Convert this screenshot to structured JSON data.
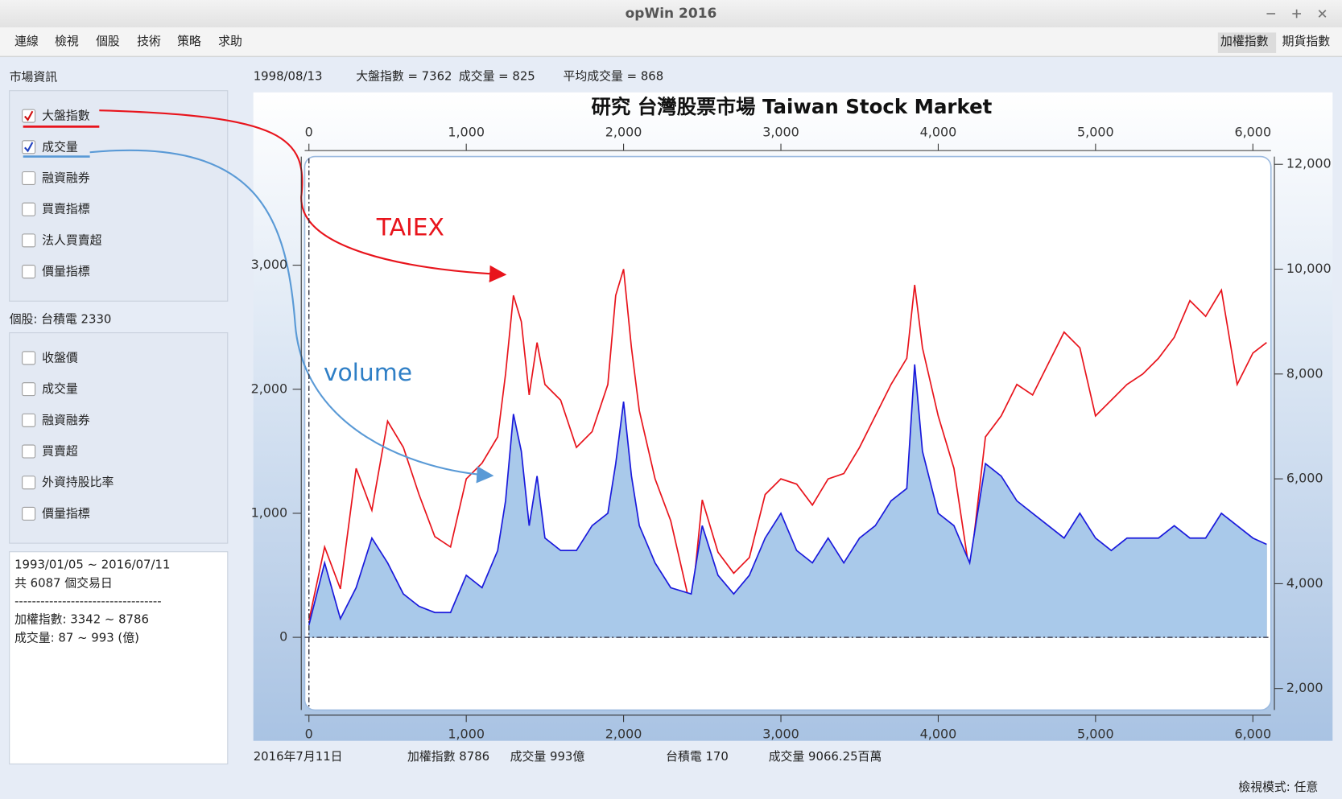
{
  "window": {
    "title": "opWin 2016"
  },
  "menu": [
    "連線",
    "檢視",
    "個股",
    "技術",
    "策略",
    "求助"
  ],
  "toolbar": [
    "加權指數",
    "期貨指數"
  ],
  "sidebar": {
    "market_title": "市場資訊",
    "market_items": [
      {
        "label": "大盤指數",
        "checked": true
      },
      {
        "label": "成交量",
        "checked": true
      },
      {
        "label": "融資融券",
        "checked": false
      },
      {
        "label": "買賣指標",
        "checked": false
      },
      {
        "label": "法人買賣超",
        "checked": false
      },
      {
        "label": "價量指標",
        "checked": false
      }
    ],
    "stock_title": "個股: 台積電  2330",
    "stock_items": [
      {
        "label": "收盤價",
        "checked": false
      },
      {
        "label": "成交量",
        "checked": false
      },
      {
        "label": "融資融券",
        "checked": false
      },
      {
        "label": "買賣超",
        "checked": false
      },
      {
        "label": "外資持股比率",
        "checked": false
      },
      {
        "label": "價量指標",
        "checked": false
      }
    ],
    "info_lines": [
      "1993/01/05 ~ 2016/07/11",
      "共 6087 個交易日",
      "----------------------------------",
      "加權指數: 3342 ~ 8786",
      "成交量: 87 ~ 993 (億)"
    ]
  },
  "status_top": [
    "1998/08/13",
    "大盤指數 = 7362",
    "成交量 = 825",
    "平均成交量 = 868"
  ],
  "status_bottom": [
    "2016年7月11日",
    "加權指數 8786",
    "成交量 993億",
    "台積電  170",
    "成交量 9066.25百萬"
  ],
  "view_mode": "檢視模式: 任意",
  "chart_data": {
    "type": "line",
    "title": "研究 台灣股票市場 Taiwan Stock Market",
    "x": [
      0,
      100,
      200,
      300,
      400,
      500,
      600,
      700,
      800,
      900,
      1000,
      1100,
      1200,
      1250,
      1300,
      1350,
      1400,
      1450,
      1500,
      1600,
      1700,
      1800,
      1900,
      1950,
      2000,
      2050,
      2100,
      2200,
      2300,
      2430,
      2500,
      2600,
      2700,
      2800,
      2900,
      3000,
      3100,
      3200,
      3300,
      3400,
      3500,
      3600,
      3700,
      3800,
      3850,
      3900,
      4000,
      4100,
      4200,
      4300,
      4400,
      4500,
      4600,
      4700,
      4800,
      4900,
      5000,
      5100,
      5200,
      5300,
      5400,
      5500,
      5600,
      5700,
      5800,
      5900,
      6000,
      6087
    ],
    "series": [
      {
        "name": "TAIEX",
        "color": "#e8141c",
        "axis": "y2",
        "values": [
          3300,
          4700,
          3900,
          6200,
          5400,
          7100,
          6600,
          5700,
          4900,
          4700,
          6000,
          6300,
          6800,
          8000,
          9500,
          9000,
          7600,
          8600,
          7800,
          7500,
          6600,
          6900,
          7800,
          9500,
          10000,
          8500,
          7300,
          6000,
          5200,
          3500,
          5600,
          4600,
          4200,
          4500,
          5700,
          6000,
          5900,
          5500,
          6000,
          6100,
          6600,
          7200,
          7800,
          8300,
          9700,
          8500,
          7200,
          6200,
          4200,
          6800,
          7200,
          7800,
          7600,
          8200,
          8800,
          8500,
          7200,
          7500,
          7800,
          8000,
          8300,
          8700,
          9400,
          9100,
          9600,
          7800,
          8400,
          8600
        ]
      },
      {
        "name": "volume",
        "color": "#1a1adc",
        "values": [
          100,
          600,
          150,
          400,
          800,
          600,
          350,
          250,
          200,
          200,
          500,
          400,
          700,
          1100,
          1800,
          1500,
          900,
          1300,
          800,
          700,
          700,
          900,
          1000,
          1400,
          1900,
          1300,
          900,
          600,
          400,
          350,
          900,
          500,
          350,
          500,
          800,
          1000,
          700,
          600,
          800,
          600,
          800,
          900,
          1100,
          1200,
          2200,
          1500,
          1000,
          900,
          600,
          1400,
          1300,
          1100,
          1000,
          900,
          800,
          1000,
          800,
          700,
          800,
          800,
          800,
          900,
          800,
          800,
          1000,
          900,
          800,
          750
        ]
      }
    ],
    "xlim": [
      -27,
      6115
    ],
    "ylim": [
      -586,
      3876
    ],
    "y2lim": [
      1590,
      12148
    ],
    "xticks": [
      0,
      {
        "value": 1000,
        "label": "1,000"
      },
      {
        "value": 2000,
        "label": "2,000"
      },
      {
        "value": 3000,
        "label": "3,000"
      },
      {
        "value": 4000,
        "label": "4,000"
      },
      {
        "value": 5000,
        "label": "5,000"
      },
      {
        "value": 6000,
        "label": "6,000"
      }
    ],
    "yticks": [
      0,
      {
        "value": 1000,
        "label": "1,000"
      },
      {
        "value": 2000,
        "label": "2,000"
      },
      {
        "value": 3000,
        "label": "3,000"
      }
    ],
    "y2ticks": [
      {
        "value": 2000,
        "label": "2,000"
      },
      {
        "value": 4000,
        "label": "4,000"
      },
      {
        "value": 6000,
        "label": "6,000"
      },
      {
        "value": 8000,
        "label": "8,000"
      },
      {
        "value": 10000,
        "label": "10,000"
      },
      {
        "value": 12000,
        "label": "12,000"
      }
    ]
  }
}
